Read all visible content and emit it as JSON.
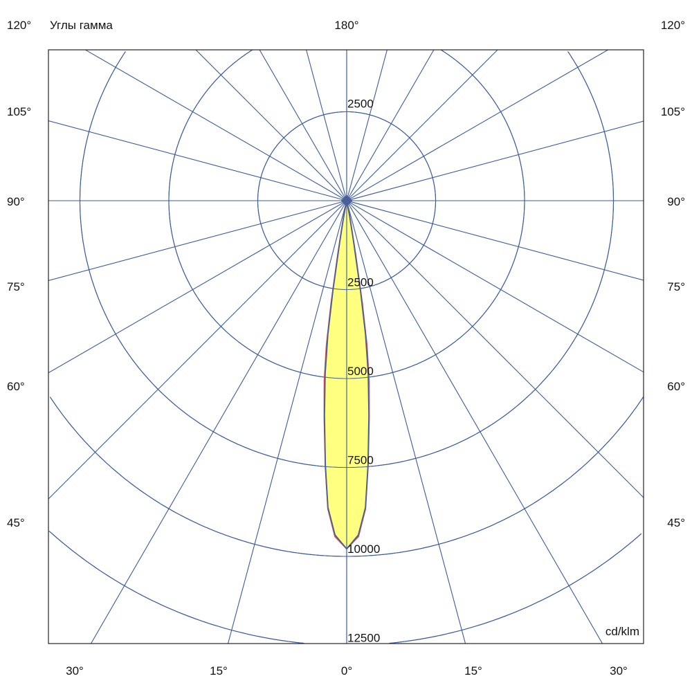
{
  "chart_data": {
    "type": "polar",
    "title": "Углы гамма",
    "unit_label": "cd/klm",
    "top_label": "180°",
    "left_angle_labels": [
      "120°",
      "105°",
      "90°",
      "75°",
      "60°",
      "45°"
    ],
    "right_angle_labels": [
      "120°",
      "105°",
      "90°",
      "75°",
      "60°",
      "45°"
    ],
    "bottom_angle_labels": [
      "30°",
      "15°",
      "0°",
      "15°",
      "30°"
    ],
    "radial_step": 2500,
    "radial_tick_labels": [
      "2500",
      "2500",
      "5000",
      "7500",
      "10000",
      "12500"
    ],
    "radial_max_circle": 15000,
    "angular_grid_step_deg": 15,
    "grid": true,
    "colors": {
      "grid": "#3b5b9c",
      "frame": "#222222",
      "fill": "#ffff80",
      "series_c0": "#e0504a",
      "series_c90": "#4a5f96"
    },
    "series": [
      {
        "key": "c0",
        "gamma": [
          0,
          2,
          3.5,
          4.6,
          5.9,
          7.1,
          8.0,
          8.7,
          9.5,
          10.5,
          12,
          20,
          90
        ],
        "values": [
          9790,
          9450,
          8680,
          7500,
          6150,
          5100,
          4100,
          2900,
          1500,
          650,
          200,
          20,
          0
        ]
      },
      {
        "key": "c90",
        "gamma": [
          0,
          2,
          3.5,
          4.6,
          5.9,
          7.1,
          8.0,
          8.7,
          9.5,
          10.5,
          12,
          20,
          90
        ],
        "values": [
          9790,
          9400,
          8640,
          7460,
          6070,
          4900,
          3800,
          2560,
          1190,
          500,
          150,
          10,
          0
        ]
      }
    ]
  }
}
